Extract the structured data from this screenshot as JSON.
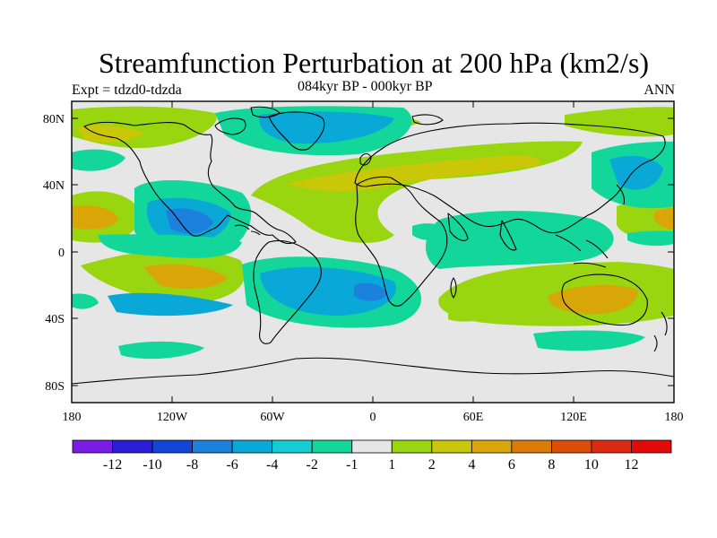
{
  "title": "Streamfunction Perturbation at 200 hPa (km2/s)",
  "subtitle_left": "Expt = tdzd0-tdzda",
  "subtitle_center": "084kyr BP - 000kyr BP",
  "subtitle_right": "ANN",
  "latitude_labels": [
    "80N",
    "40N",
    "0",
    "40S",
    "80S"
  ],
  "longitude_labels": [
    "180",
    "120W",
    "60W",
    "0",
    "60E",
    "120E",
    "180"
  ],
  "colorbar": {
    "labels": [
      "-12",
      "-10",
      "-8",
      "-6",
      "-4",
      "-2",
      "-1",
      "1",
      "2",
      "4",
      "6",
      "8",
      "10",
      "12"
    ],
    "colors": [
      "#7a1de6",
      "#2a1fd6",
      "#1146d6",
      "#1c80dd",
      "#0aa8d6",
      "#13cdd3",
      "#13d69b",
      "#e6e6e6",
      "#99d610",
      "#c9c708",
      "#d9a607",
      "#dc7c08",
      "#dc4e08",
      "#dc2a12",
      "#e30a0a"
    ]
  },
  "colors": {
    "ocean_background": "#e6e6e6",
    "coastline": "#000000"
  }
}
